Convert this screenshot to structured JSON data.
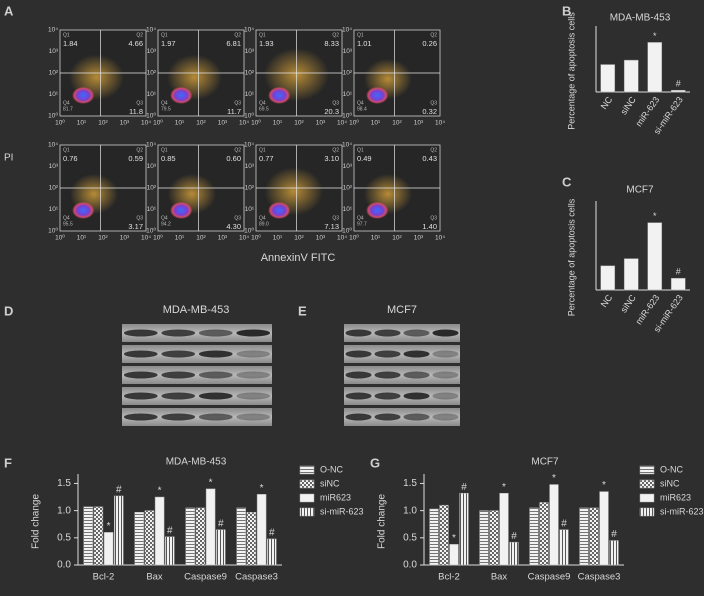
{
  "flow_panel": {
    "label": "A",
    "y_axis": "PI",
    "x_axis": "AnnexinV FITC",
    "ticks": [
      "10⁰",
      "10¹",
      "10²",
      "10³",
      "10⁴"
    ],
    "quadrant_names": [
      "Q1",
      "Q2",
      "Q3",
      "Q4"
    ],
    "plots": [
      {
        "q1": "1.84",
        "q2": "4.66",
        "q3": "11.8",
        "q4": "81.7"
      },
      {
        "q1": "1.97",
        "q2": "6.81",
        "q3": "11.7",
        "q4": "79.5"
      },
      {
        "q1": "1.93",
        "q2": "8.33",
        "q3": "20.3",
        "q4": "69.5"
      },
      {
        "q1": "1.01",
        "q2": "0.26",
        "q3": "0.32",
        "q4": "98.4"
      },
      {
        "q1": "0.76",
        "q2": "0.59",
        "q3": "3.17",
        "q4": "95.5"
      },
      {
        "q1": "0.85",
        "q2": "0.60",
        "q3": "4.30",
        "q4": "94.2"
      },
      {
        "q1": "0.77",
        "q2": "3.10",
        "q3": "7.13",
        "q4": "89.0"
      },
      {
        "q1": "0.49",
        "q2": "0.43",
        "q3": "1.40",
        "q4": "97.7"
      }
    ]
  },
  "blot_panels": [
    {
      "label": "D",
      "title": "MDA-MB-453"
    },
    {
      "label": "E",
      "title": "MCF7"
    }
  ],
  "chart_data": [
    {
      "type": "bar",
      "label": "B",
      "title": "MDA-MB-453",
      "y_label": "Percentage of apoptosis cells",
      "categories": [
        "NC",
        "siNC",
        "miR-623",
        "si-miR-623"
      ],
      "values": [
        15.5,
        18,
        28,
        1
      ],
      "value_markers": [
        null,
        null,
        "*",
        "#"
      ],
      "color": "#f2f2f2",
      "ylim": [
        0,
        35
      ]
    },
    {
      "type": "bar",
      "label": "C",
      "title": "MCF7",
      "y_label": "Percentage of apoptosis cells",
      "categories": [
        "NC",
        "siNC",
        "miR-623",
        "si-miR-623"
      ],
      "values": [
        3.7,
        4.8,
        10.3,
        1.8
      ],
      "value_markers": [
        null,
        null,
        "*",
        "#"
      ],
      "color": "#f2f2f2",
      "ylim": [
        0,
        13
      ]
    },
    {
      "type": "grouped_bar",
      "label": "F",
      "title": "MDA-MB-453",
      "y_label": "Fold change",
      "categories": [
        "Bcl-2",
        "Bax",
        "Caspase9",
        "Caspase3"
      ],
      "series": [
        {
          "name": "O-NC",
          "pattern": "hlines",
          "values": [
            1.07,
            0.97,
            1.05,
            1.05
          ]
        },
        {
          "name": "siNC",
          "pattern": "check",
          "values": [
            1.07,
            1.0,
            1.05,
            0.97
          ]
        },
        {
          "name": "miR623",
          "pattern": "solid",
          "marker": "*",
          "values": [
            0.6,
            1.25,
            1.4,
            1.3
          ]
        },
        {
          "name": "si-miR-623",
          "pattern": "vlines",
          "marker": "#",
          "values": [
            1.27,
            0.52,
            0.65,
            0.48
          ]
        }
      ],
      "ylim": [
        0,
        1.6
      ],
      "yticks": [
        {
          "value": 0,
          "label": "0.0"
        },
        0.5,
        {
          "value": 1,
          "label": "1.0"
        },
        1.5
      ]
    },
    {
      "type": "grouped_bar",
      "label": "G",
      "title": "MCF7",
      "y_label": "Fold change",
      "categories": [
        "Bcl-2",
        "Bax",
        "Caspase9",
        "Caspase3"
      ],
      "series": [
        {
          "name": "O-NC",
          "pattern": "hlines",
          "values": [
            1.03,
            1.0,
            1.05,
            1.05
          ]
        },
        {
          "name": "siNC",
          "pattern": "check",
          "values": [
            1.1,
            1.0,
            1.15,
            1.05
          ]
        },
        {
          "name": "miR623",
          "pattern": "solid",
          "marker": "*",
          "values": [
            0.38,
            1.32,
            1.48,
            1.35
          ]
        },
        {
          "name": "si-miR-623",
          "pattern": "vlines",
          "marker": "#",
          "values": [
            1.32,
            0.42,
            0.65,
            0.45
          ]
        }
      ],
      "ylim": [
        0,
        1.6
      ],
      "yticks": [
        {
          "value": 0,
          "label": "0.0"
        },
        0.5,
        {
          "value": 1,
          "label": "1.0"
        },
        1.5
      ]
    }
  ]
}
